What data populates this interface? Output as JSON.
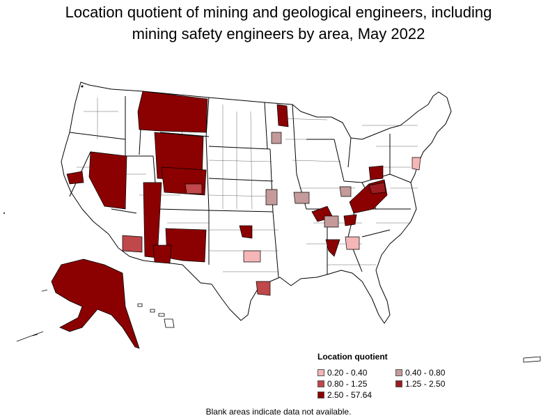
{
  "title_line1": "Location quotient of mining and geological engineers, including",
  "title_line2": "mining safety engineers by area, May 2022",
  "legend": {
    "title": "Location quotient",
    "items": [
      {
        "label": "0.20 - 0.40",
        "color": "#f4b6b6"
      },
      {
        "label": "0.40 - 0.80",
        "color": "#c49a9a"
      },
      {
        "label": "0.80 - 1.25",
        "color": "#c0474a"
      },
      {
        "label": "1.25 - 2.50",
        "color": "#9a1c20"
      },
      {
        "label": "2.50 - 57.64",
        "color": "#8b0000"
      }
    ]
  },
  "footnote": "Blank areas indicate data not available.",
  "colors": {
    "no_data": "#ffffff",
    "border": "#000000"
  }
}
